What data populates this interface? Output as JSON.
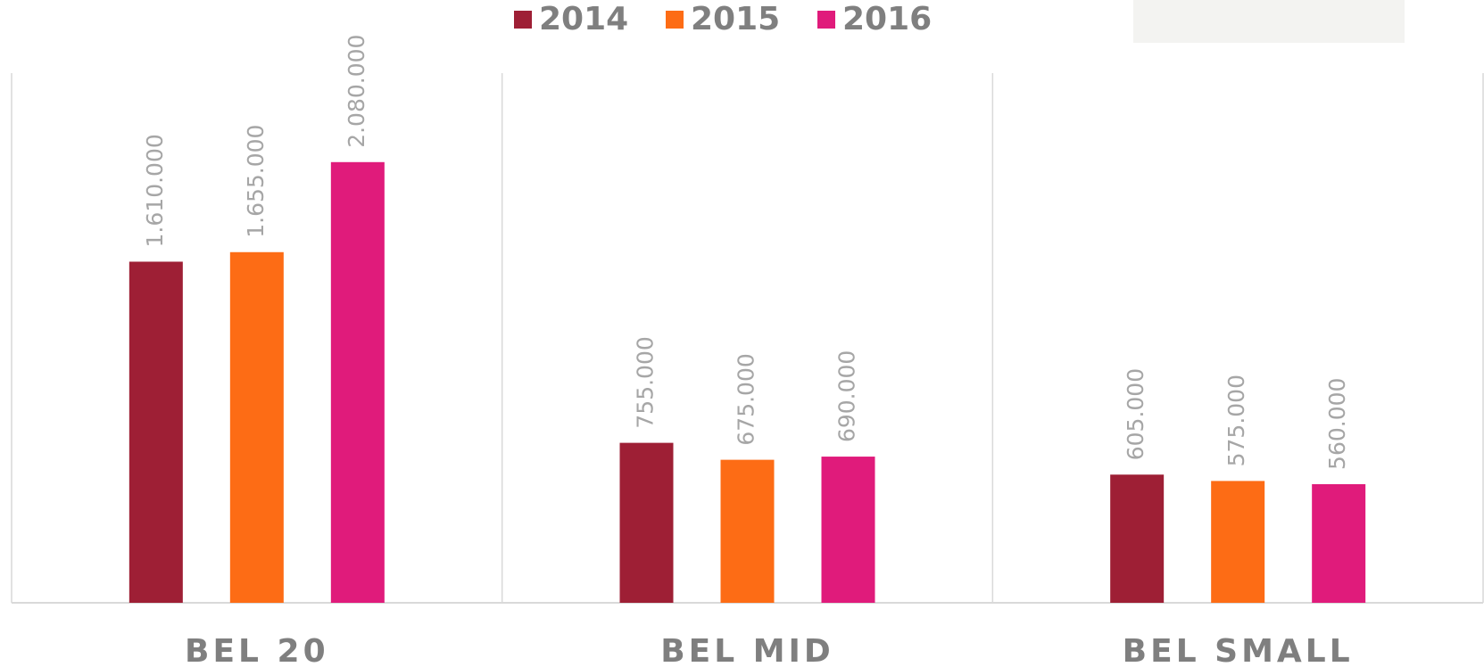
{
  "chart_data": {
    "type": "bar",
    "categories": [
      "BEL 20",
      "BEL MID",
      "BEL SMALL"
    ],
    "series": [
      {
        "name": "2014",
        "color": "#9e1f35",
        "values": [
          1610000,
          755000,
          605000
        ],
        "value_labels": [
          "1.610.000",
          "755.000",
          "605.000"
        ]
      },
      {
        "name": "2015",
        "color": "#fd6c15",
        "values": [
          1655000,
          675000,
          575000
        ],
        "value_labels": [
          "1.655.000",
          "675.000",
          "575.000"
        ]
      },
      {
        "name": "2016",
        "color": "#e01b7b",
        "values": [
          2080000,
          690000,
          560000
        ],
        "value_labels": [
          "2.080.000",
          "690.000",
          "560.000"
        ]
      }
    ],
    "ylim": [
      0,
      2500000
    ],
    "legend": "top"
  }
}
